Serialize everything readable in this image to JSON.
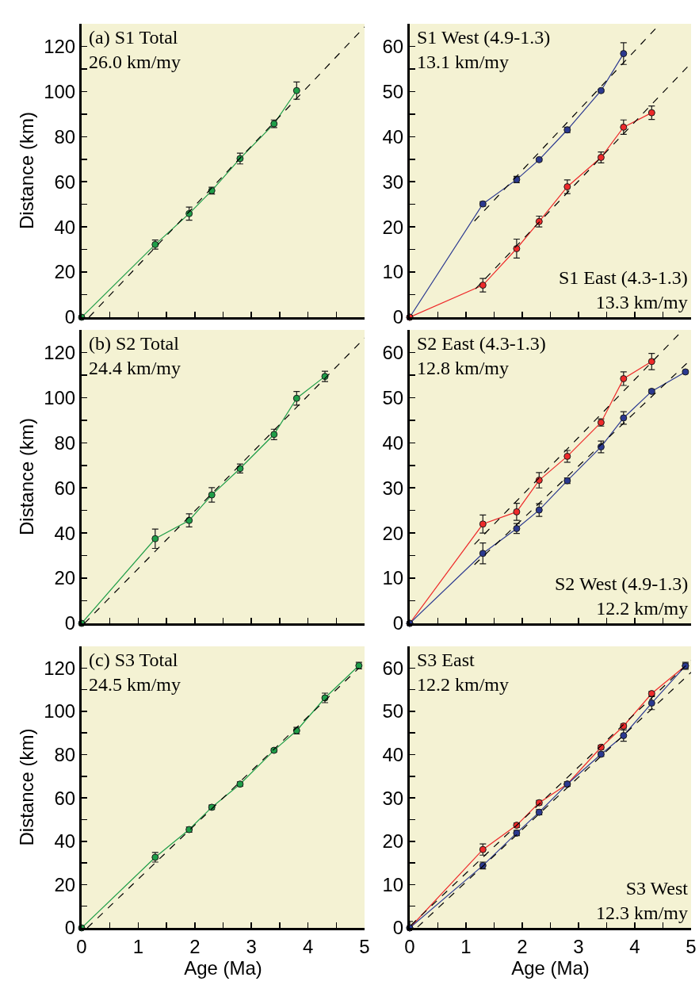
{
  "chart_data": [
    {
      "type": "line",
      "ylabel": "Distance (km)",
      "tick_labels": "y",
      "marker": "circle",
      "line_style": "solid",
      "xlim": [
        0,
        5
      ],
      "ylim": [
        0,
        130
      ],
      "xticks": [
        0,
        {
          "value": 0.5,
          "label": null
        },
        1,
        {
          "value": 1.5,
          "label": null
        },
        2,
        {
          "value": 2.5,
          "label": null
        },
        3,
        {
          "value": 3.5,
          "label": null
        },
        4,
        {
          "value": 4.5,
          "label": null
        },
        5
      ],
      "yticks": [
        0,
        {
          "value": 10,
          "label": null
        },
        20,
        {
          "value": 30,
          "label": null
        },
        40,
        {
          "value": 50,
          "label": null
        },
        60,
        {
          "value": 70,
          "label": null
        },
        80,
        {
          "value": 90,
          "label": null
        },
        100,
        {
          "value": 110,
          "label": null
        },
        120
      ],
      "x": [
        0,
        1.3,
        1.9,
        2.3,
        2.8,
        3.4,
        3.8
      ],
      "annotations": [
        "(a) S1 Total\n26.0 km/my"
      ],
      "series": [
        {
          "color": "#1f9e48",
          "values": [
            0,
            32.2,
            45.9,
            56.1,
            70.3,
            85.7,
            100.4
          ],
          "errors": [
            null,
            2,
            2.9,
            1.5,
            2.4,
            1.7,
            3.8
          ]
        },
        {
          "type": "line",
          "line_style": "dashed",
          "marker": "none",
          "color": "#000000",
          "x": [
            0.13,
            5
          ],
          "values": [
            0,
            128.6
          ]
        }
      ]
    },
    {
      "type": "line",
      "tick_labels": "y",
      "marker": "circle",
      "line_style": "solid",
      "xlim": [
        0,
        5
      ],
      "ylim": [
        0,
        65
      ],
      "xticks": [
        0,
        {
          "value": 0.5,
          "label": null
        },
        1,
        {
          "value": 1.5,
          "label": null
        },
        2,
        {
          "value": 2.5,
          "label": null
        },
        3,
        {
          "value": 3.5,
          "label": null
        },
        4,
        {
          "value": 4.5,
          "label": null
        },
        5
      ],
      "yticks": [
        0,
        {
          "value": 5,
          "label": null
        },
        10,
        {
          "value": 15,
          "label": null
        },
        20,
        {
          "value": 25,
          "label": null
        },
        30,
        {
          "value": 35,
          "label": null
        },
        40,
        {
          "value": 45,
          "label": null
        },
        50,
        {
          "value": 55,
          "label": null
        },
        60
      ],
      "x": [
        0,
        1.3,
        1.9,
        2.3,
        2.8,
        3.4,
        3.8,
        4.3
      ],
      "annotations": [
        "S1 West (4.9-1.3)\n13.1 km/my",
        "S1 East (4.3-1.3)\n13.3 km/my"
      ],
      "series": [
        {
          "color": "#2b3990",
          "values": [
            0,
            25.1,
            30.5,
            34.9,
            41.5,
            50.2,
            58.4,
            null
          ],
          "errors": [
            null,
            0.5,
            0.7,
            0.3,
            0.6,
            0.3,
            2.4,
            null
          ]
        },
        {
          "color": "#ee2a2a",
          "values": [
            0,
            7.1,
            15.2,
            21.2,
            28.9,
            35.4,
            42.1,
            45.3
          ],
          "errors": [
            null,
            1.5,
            2.1,
            1.2,
            1.5,
            1.2,
            1.6,
            1.5
          ]
        },
        {
          "type": "line",
          "line_style": "dashed",
          "marker": "none",
          "color": "#000000",
          "x": [
            1.15,
            4.45
          ],
          "values": [
            21.3,
            65
          ]
        },
        {
          "type": "line",
          "line_style": "dashed",
          "marker": "none",
          "color": "#000000",
          "x": [
            1.17,
            5
          ],
          "values": [
            6.3,
            56.3
          ]
        }
      ]
    },
    {
      "type": "line",
      "ylabel": "Distance (km)",
      "tick_labels": "y",
      "marker": "circle",
      "line_style": "solid",
      "xlim": [
        0,
        5
      ],
      "ylim": [
        0,
        130
      ],
      "xticks": [
        0,
        {
          "value": 0.5,
          "label": null
        },
        1,
        {
          "value": 1.5,
          "label": null
        },
        2,
        {
          "value": 2.5,
          "label": null
        },
        3,
        {
          "value": 3.5,
          "label": null
        },
        4,
        {
          "value": 4.5,
          "label": null
        },
        5
      ],
      "yticks": [
        0,
        {
          "value": 10,
          "label": null
        },
        20,
        {
          "value": 30,
          "label": null
        },
        40,
        {
          "value": 50,
          "label": null
        },
        60,
        {
          "value": 70,
          "label": null
        },
        80,
        {
          "value": 90,
          "label": null
        },
        100,
        {
          "value": 110,
          "label": null
        },
        120
      ],
      "x": [
        0,
        1.3,
        1.9,
        2.3,
        2.8,
        3.4,
        3.8,
        4.3
      ],
      "annotations": [
        "(b) S2 Total\n24.4 km/my"
      ],
      "series": [
        {
          "color": "#1f9e48",
          "values": [
            0,
            37.5,
            45.6,
            56.9,
            68.6,
            83.7,
            99.7,
            109.4
          ],
          "errors": [
            null,
            4.3,
            2.9,
            3.2,
            2,
            2.3,
            3,
            2.3
          ]
        },
        {
          "type": "line",
          "line_style": "dashed",
          "marker": "none",
          "color": "#000000",
          "x": [
            0.05,
            5
          ],
          "values": [
            0,
            126.4
          ]
        }
      ]
    },
    {
      "type": "line",
      "tick_labels": "y",
      "marker": "circle",
      "line_style": "solid",
      "xlim": [
        0,
        5
      ],
      "ylim": [
        0,
        65
      ],
      "xticks": [
        0,
        {
          "value": 0.5,
          "label": null
        },
        1,
        {
          "value": 1.5,
          "label": null
        },
        2,
        {
          "value": 2.5,
          "label": null
        },
        3,
        {
          "value": 3.5,
          "label": null
        },
        4,
        {
          "value": 4.5,
          "label": null
        },
        5
      ],
      "yticks": [
        0,
        {
          "value": 5,
          "label": null
        },
        10,
        {
          "value": 15,
          "label": null
        },
        20,
        {
          "value": 25,
          "label": null
        },
        30,
        {
          "value": 35,
          "label": null
        },
        40,
        {
          "value": 45,
          "label": null
        },
        50,
        {
          "value": 55,
          "label": null
        },
        60
      ],
      "x": [
        0,
        1.3,
        1.9,
        2.3,
        2.8,
        3.4,
        3.8,
        4.3,
        4.9
      ],
      "annotations": [
        "S2 East (4.3-1.3)\n12.8 km/my",
        "S2 West (4.9-1.3)\n12.2 km/my"
      ],
      "series": [
        {
          "color": "#ee2a2a",
          "values": [
            0,
            22,
            24.7,
            31.7,
            37,
            44.5,
            54.2,
            58,
            null
          ],
          "errors": [
            null,
            2,
            1.9,
            1.7,
            1.3,
            0.8,
            1.5,
            1.8,
            null
          ]
        },
        {
          "color": "#2b3990",
          "values": [
            0,
            15.5,
            21,
            25.1,
            31.6,
            39.1,
            45.5,
            51.4,
            55.7
          ],
          "errors": [
            null,
            2.3,
            1.1,
            1.4,
            0.6,
            1.3,
            1.4,
            0.4,
            0.3
          ]
        },
        {
          "type": "line",
          "line_style": "dashed",
          "marker": "none",
          "color": "#000000",
          "x": [
            1.15,
            4.85
          ],
          "values": [
            17.5,
            64.9
          ]
        },
        {
          "type": "line",
          "line_style": "dashed",
          "marker": "none",
          "color": "#000000",
          "x": [
            1.15,
            5
          ],
          "values": [
            13,
            58.5
          ]
        }
      ]
    },
    {
      "type": "line",
      "xlabel": "Age (Ma)",
      "ylabel": "Distance (km)",
      "marker": "circle",
      "line_style": "solid",
      "xlim": [
        0,
        5
      ],
      "ylim": [
        0,
        130
      ],
      "xticks": [
        0,
        {
          "value": 0.5,
          "label": null
        },
        1,
        {
          "value": 1.5,
          "label": null
        },
        2,
        {
          "value": 2.5,
          "label": null
        },
        3,
        {
          "value": 3.5,
          "label": null
        },
        4,
        {
          "value": 4.5,
          "label": null
        },
        5
      ],
      "yticks": [
        0,
        {
          "value": 10,
          "label": null
        },
        20,
        {
          "value": 30,
          "label": null
        },
        40,
        {
          "value": 50,
          "label": null
        },
        60,
        {
          "value": 70,
          "label": null
        },
        80,
        {
          "value": 90,
          "label": null
        },
        100,
        {
          "value": 110,
          "label": null
        },
        120
      ],
      "x": [
        0,
        1.3,
        1.9,
        2.3,
        2.8,
        3.4,
        3.8,
        4.3,
        4.9
      ],
      "annotations": [
        "(c) S3 Total\n24.5 km/my"
      ],
      "series": [
        {
          "color": "#1f9e48",
          "values": [
            0,
            32.6,
            45.4,
            55.7,
            66.4,
            82,
            91.1,
            106.2,
            121.1
          ],
          "errors": [
            null,
            2.2,
            1.2,
            1,
            1,
            0.8,
            1.5,
            2.2,
            1.5
          ]
        },
        {
          "type": "line",
          "line_style": "dashed",
          "marker": "none",
          "color": "#000000",
          "x": [
            0.1,
            4.9
          ],
          "values": [
            0,
            120
          ]
        }
      ]
    },
    {
      "type": "line",
      "xlabel": "Age (Ma)",
      "marker": "circle",
      "line_style": "solid",
      "xlim": [
        0,
        5
      ],
      "ylim": [
        0,
        65
      ],
      "xticks": [
        0,
        {
          "value": 0.5,
          "label": null
        },
        1,
        {
          "value": 1.5,
          "label": null
        },
        2,
        {
          "value": 2.5,
          "label": null
        },
        3,
        {
          "value": 3.5,
          "label": null
        },
        4,
        {
          "value": 4.5,
          "label": null
        },
        5
      ],
      "yticks": [
        0,
        {
          "value": 5,
          "label": null
        },
        10,
        {
          "value": 15,
          "label": null
        },
        20,
        {
          "value": 25,
          "label": null
        },
        30,
        {
          "value": 35,
          "label": null
        },
        40,
        {
          "value": 45,
          "label": null
        },
        50,
        {
          "value": 55,
          "label": null
        },
        60
      ],
      "x": [
        0,
        1.3,
        1.9,
        2.3,
        2.8,
        3.4,
        3.8,
        4.3,
        4.9
      ],
      "annotations": [
        "S3 East\n12.2 km/my",
        "S3 West\n12.3 km/my"
      ],
      "series": [
        {
          "color": "#ee2a2a",
          "values": [
            0,
            18.1,
            23.7,
            28.9,
            33.2,
            41.7,
            46.6,
            54.1,
            60.5
          ],
          "errors": [
            null,
            1.3,
            0.5,
            0.5,
            0.5,
            0.5,
            0.5,
            0.5,
            0.5
          ]
        },
        {
          "color": "#2b3990",
          "values": [
            0,
            14.4,
            21.9,
            26.7,
            33.2,
            40.1,
            44.4,
            51.9,
            60.5
          ],
          "errors": [
            1.5,
            0.8,
            0.6,
            0.6,
            0.5,
            0.5,
            1.3,
            1.5,
            0.8
          ]
        },
        {
          "type": "line",
          "line_style": "dashed",
          "marker": "none",
          "color": "#000000",
          "x": [
            0.02,
            5
          ],
          "values": [
            0.6,
            61.7
          ]
        },
        {
          "type": "line",
          "line_style": "dashed",
          "marker": "none",
          "color": "#000000",
          "x": [
            0.14,
            5
          ],
          "values": [
            0.2,
            59
          ]
        }
      ]
    }
  ]
}
